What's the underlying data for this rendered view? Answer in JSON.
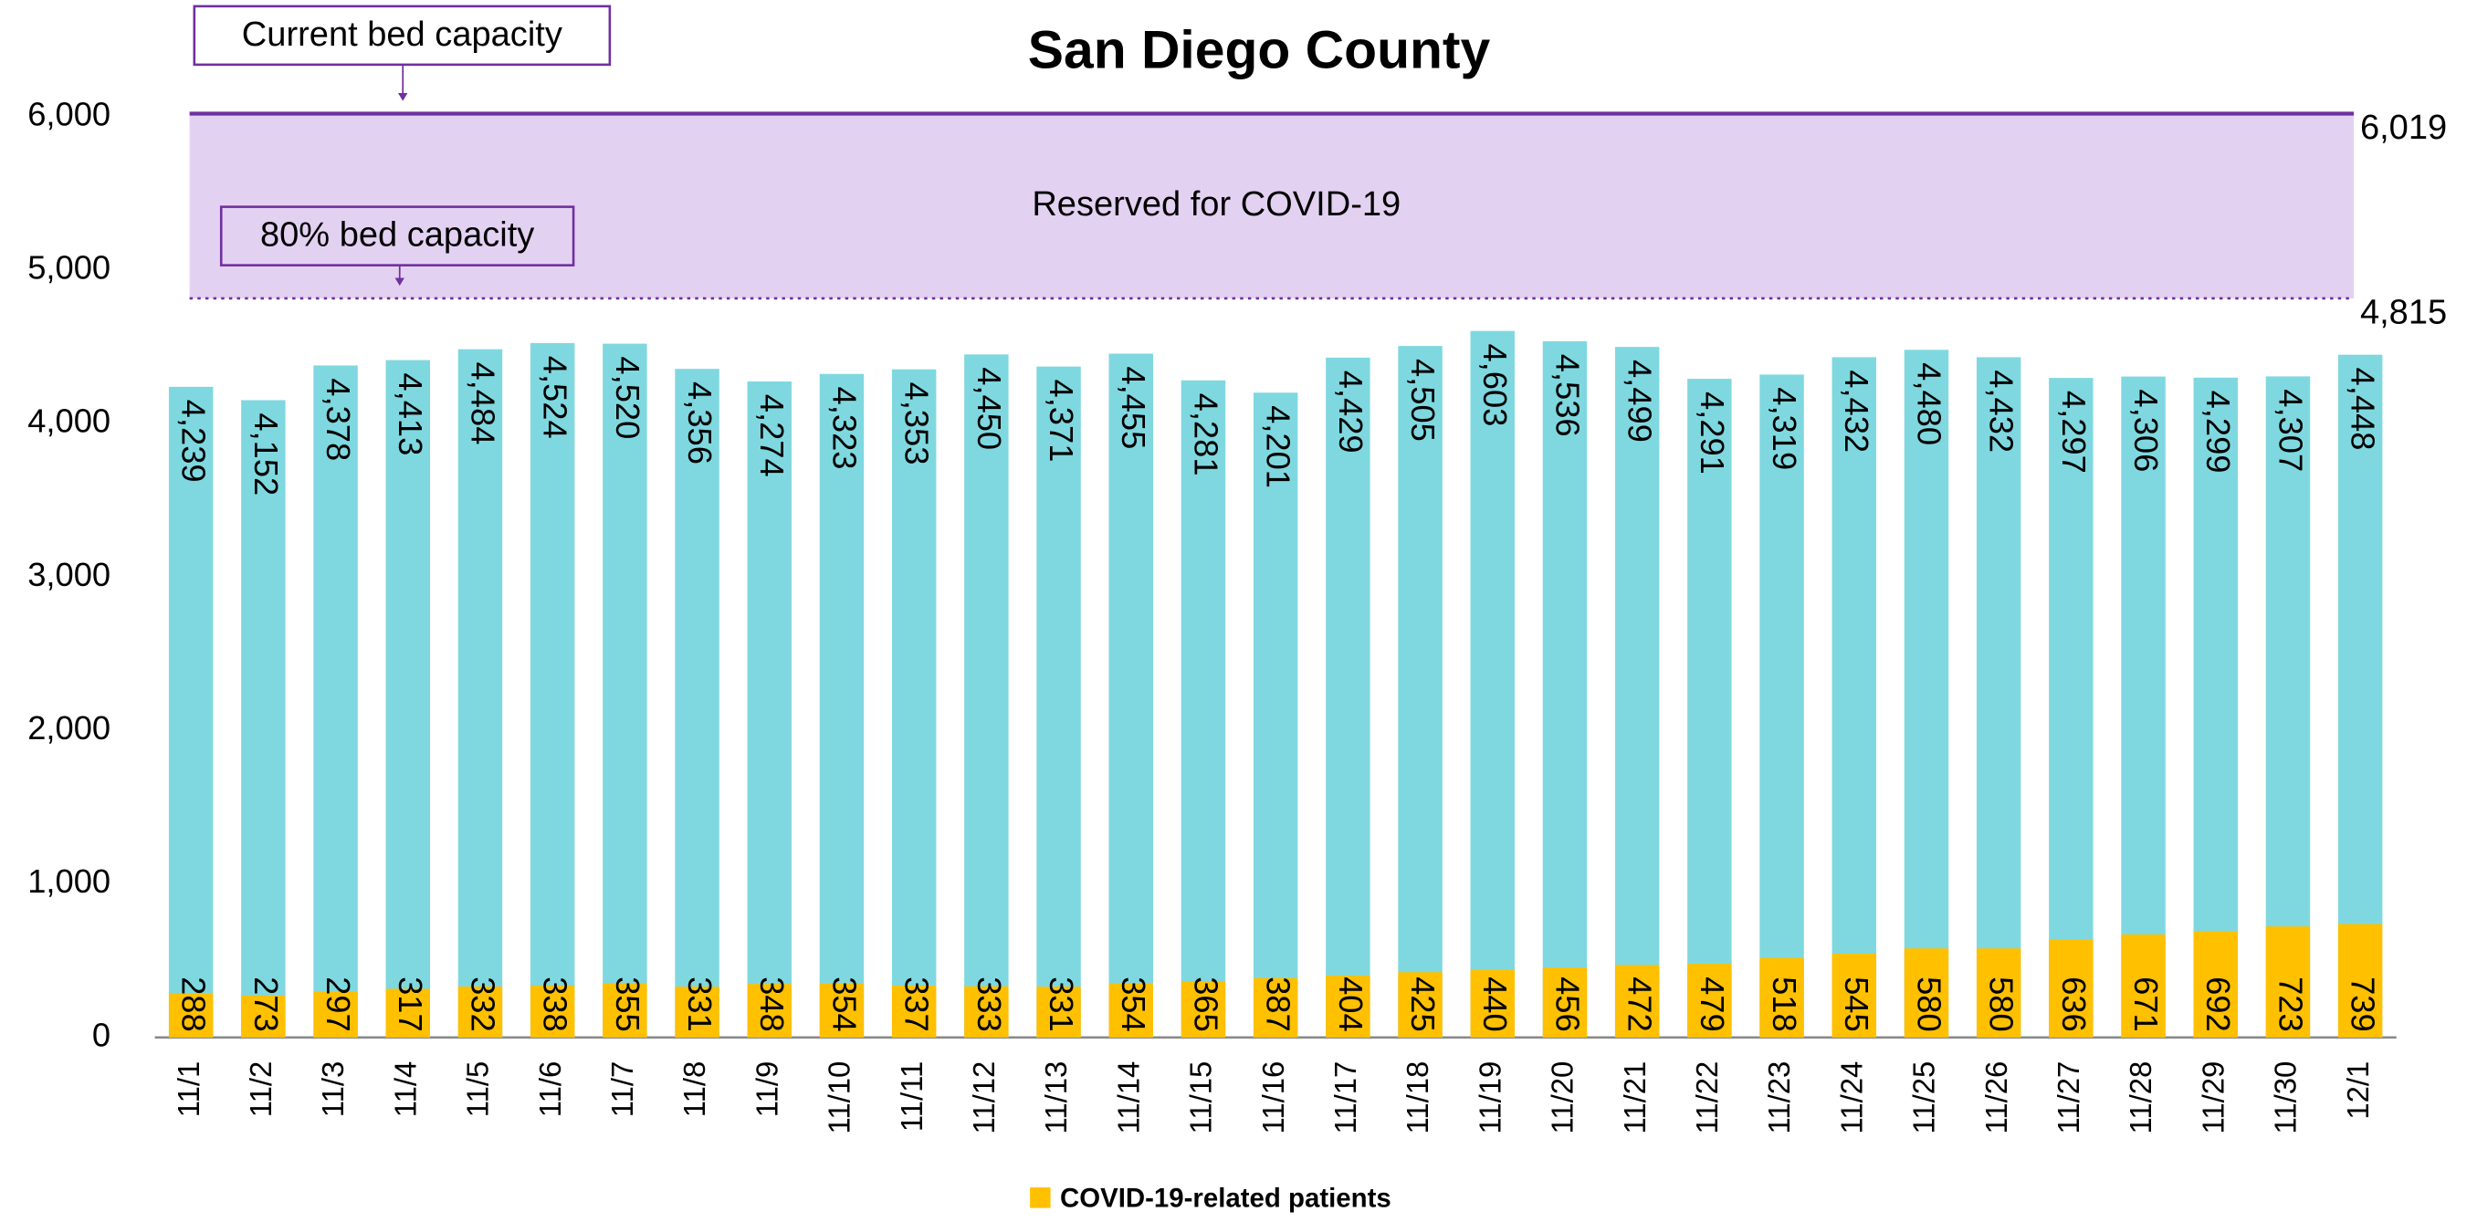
{
  "chart_data": {
    "type": "bar",
    "title": "San Diego County",
    "categories": [
      "11/1",
      "11/2",
      "11/3",
      "11/4",
      "11/5",
      "11/6",
      "11/7",
      "11/8",
      "11/9",
      "11/10",
      "11/11",
      "11/12",
      "11/13",
      "11/14",
      "11/15",
      "11/16",
      "11/17",
      "11/18",
      "11/19",
      "11/20",
      "11/21",
      "11/22",
      "11/23",
      "11/24",
      "11/25",
      "11/26",
      "11/27",
      "11/28",
      "11/29",
      "11/30",
      "12/1"
    ],
    "series": [
      {
        "color": "#7fd8e0",
        "values": [
          4239,
          4152,
          4378,
          4413,
          4484,
          4524,
          4520,
          4356,
          4274,
          4323,
          4353,
          4450,
          4371,
          4455,
          4281,
          4201,
          4429,
          4505,
          4603,
          4536,
          4499,
          4291,
          4319,
          4432,
          4480,
          4432,
          4297,
          4306,
          4299,
          4307,
          4448
        ],
        "value_labels": [
          "4,239",
          "4,152",
          "4,378",
          "4,413",
          "4,484",
          "4,524",
          "4,520",
          "4,356",
          "4,274",
          "4,323",
          "4,353",
          "4,450",
          "4,371",
          "4,455",
          "4,281",
          "4,201",
          "4,429",
          "4,505",
          "4,603",
          "4,536",
          "4,499",
          "4,291",
          "4,319",
          "4,432",
          "4,480",
          "4,432",
          "4,297",
          "4,306",
          "4,299",
          "4,307",
          "4,448"
        ]
      },
      {
        "name": "COVID-19-related patients",
        "color": "#ffc000",
        "values": [
          288,
          273,
          297,
          317,
          332,
          338,
          355,
          331,
          348,
          354,
          337,
          333,
          331,
          354,
          365,
          387,
          404,
          425,
          440,
          456,
          472,
          479,
          518,
          545,
          580,
          580,
          636,
          671,
          692,
          723,
          739
        ]
      }
    ],
    "ylim": [
      0,
      6000
    ],
    "yticks": [
      0,
      {
        "value": 1000,
        "label": "1,000"
      },
      {
        "value": 2000,
        "label": "2,000"
      },
      {
        "value": 3000,
        "label": "3,000"
      },
      {
        "value": 4000,
        "label": "4,000"
      },
      {
        "value": 5000,
        "label": "5,000"
      },
      {
        "value": 6000,
        "label": "6,000"
      }
    ],
    "legend": "bottom",
    "reference_lines": [
      {
        "value": 6019,
        "label": "6,019",
        "annotation": "Current bed capacity",
        "color": "#7030a0"
      },
      {
        "value": 4815,
        "label": "4,815",
        "annotation": "80% bed capacity",
        "color": "#7030a0"
      }
    ],
    "band_label": "Reserved for COVID-19",
    "band_color": "#e3d1f2"
  }
}
